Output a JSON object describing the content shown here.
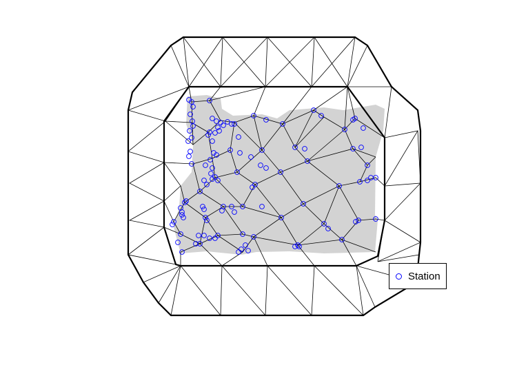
{
  "legend": {
    "label": "Station",
    "symbol": "open-circle",
    "symbol_color": "#0000ff"
  },
  "colors": {
    "region_fill": "#d3d3d3",
    "mesh_line": "#000000",
    "station_point": "#0000ff"
  }
}
